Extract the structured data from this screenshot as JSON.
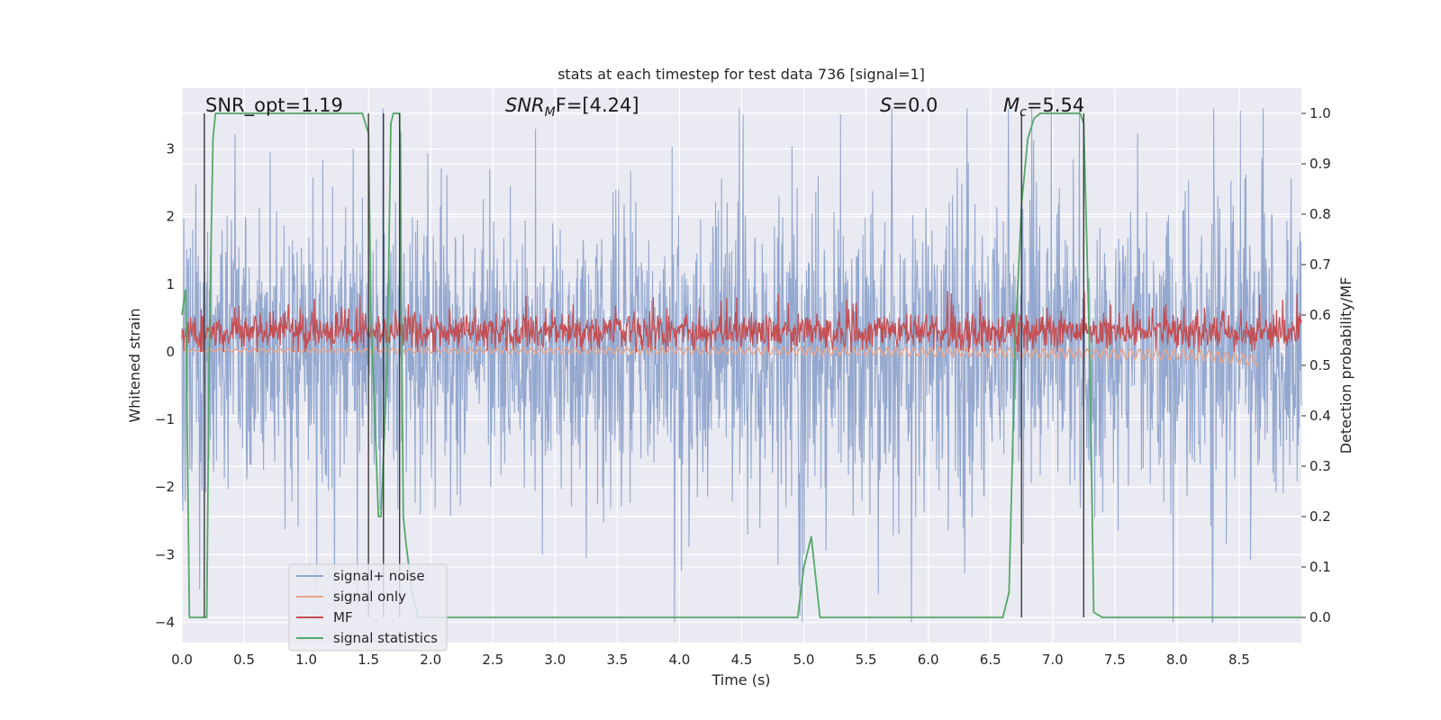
{
  "chart_data": {
    "type": "line",
    "title": "stats at each timestep for test data 736 [signal=1]",
    "xlabel": "Time (s)",
    "ylabel": "Whitened strain",
    "ylabel_right": "Detection probability/MF",
    "xlim": [
      0,
      9
    ],
    "ylim": [
      -4.3,
      3.9
    ],
    "ylim_right": [
      -0.05,
      1.05
    ],
    "xticks": [
      0.0,
      0.5,
      1.0,
      1.5,
      2.0,
      2.5,
      3.0,
      3.5,
      4.0,
      4.5,
      5.0,
      5.5,
      6.0,
      6.5,
      7.0,
      7.5,
      8.0,
      8.5
    ],
    "xtick_labels": [
      "0.0",
      "0.5",
      "1.0",
      "1.5",
      "2.0",
      "2.5",
      "3.0",
      "3.5",
      "4.0",
      "4.5",
      "5.0",
      "5.5",
      "6.0",
      "6.5",
      "7.0",
      "7.5",
      "8.0",
      "8.5"
    ],
    "yticks": [
      -4,
      -3,
      -2,
      -1,
      0,
      1,
      2,
      3
    ],
    "ytick_labels": [
      "−4",
      "−3",
      "−2",
      "−1",
      "0",
      "1",
      "2",
      "3"
    ],
    "yticks_right": [
      0.0,
      0.1,
      0.2,
      0.3,
      0.4,
      0.5,
      0.6,
      0.7,
      0.8,
      0.9,
      1.0
    ],
    "ytick_labels_right": [
      "0.0",
      "0.1",
      "0.2",
      "0.3",
      "0.4",
      "0.5",
      "0.6",
      "0.7",
      "0.8",
      "0.9",
      "1.0"
    ],
    "grid": true,
    "legend_position": "bottom-left",
    "annotations": {
      "snr_opt": "SNR_opt=1.19",
      "snr_mf_main": "SNR",
      "snr_mf_sub": "M",
      "snr_mf_tail": "F=[4.24]",
      "s_main": "S",
      "s_tail": "=0.0",
      "mc_main": "M",
      "mc_sub": "c",
      "mc_tail": "=5.54"
    },
    "series": [
      {
        "name": "signal+ noise",
        "color": "#8fa4cc",
        "axis": "left",
        "description_range": [
          -4.0,
          3.6
        ],
        "spread": 2.6
      },
      {
        "name": "signal only",
        "color": "#e8a58d",
        "axis": "left",
        "x_range": [
          0,
          8.65
        ],
        "values_approx": [
          [
            0,
            0.02
          ],
          [
            4.0,
            0.02
          ],
          [
            6.0,
            0.0
          ],
          [
            7.5,
            -0.03
          ],
          [
            8.2,
            -0.05
          ],
          [
            8.6,
            -0.12
          ]
        ]
      },
      {
        "name": "MF",
        "color": "#c44e52",
        "axis": "left",
        "mean": 0.3,
        "spread": 0.25
      },
      {
        "name": "signal statistics",
        "color": "#55a868",
        "axis": "right",
        "x": [
          0.0,
          0.03,
          0.06,
          0.1,
          0.12,
          0.15,
          0.2,
          0.22,
          0.25,
          0.27,
          0.3,
          1.4,
          1.45,
          1.5,
          1.52,
          1.55,
          1.58,
          1.6,
          1.65,
          1.68,
          1.7,
          1.75,
          1.78,
          1.8,
          1.85,
          1.9,
          4.95,
          5.0,
          5.06,
          5.13,
          6.6,
          6.65,
          6.7,
          6.75,
          6.8,
          6.85,
          6.9,
          7.22,
          7.25,
          7.3,
          7.33,
          7.4,
          9.0
        ],
        "y": [
          0.6,
          0.65,
          0.0,
          0.0,
          0.0,
          0.0,
          0.0,
          0.55,
          0.95,
          1.0,
          1.0,
          1.0,
          1.0,
          0.96,
          0.6,
          0.4,
          0.2,
          0.2,
          0.5,
          0.98,
          1.0,
          1.0,
          0.2,
          0.15,
          0.05,
          0.0,
          0.0,
          0.1,
          0.16,
          0.0,
          0.0,
          0.05,
          0.55,
          0.82,
          0.95,
          0.99,
          1.0,
          1.0,
          0.98,
          0.5,
          0.01,
          0.0,
          0.0
        ]
      }
    ],
    "vlines": [
      0.18,
      1.5,
      1.62,
      1.75,
      6.75,
      7.25
    ]
  }
}
